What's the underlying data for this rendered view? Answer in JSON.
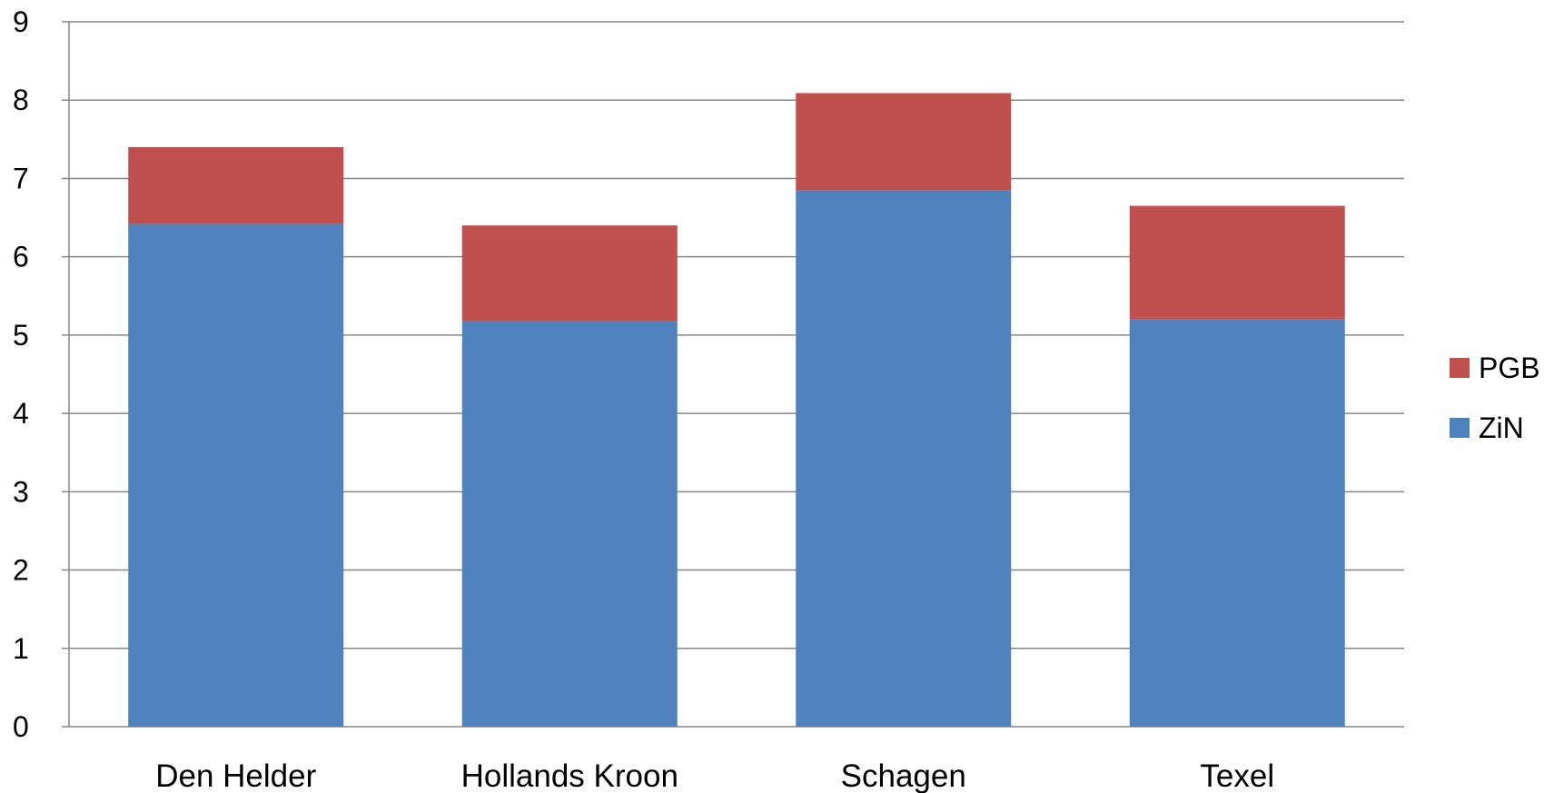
{
  "chart_data": {
    "type": "bar",
    "stacked": true,
    "categories": [
      "Den Helder",
      "Hollands Kroon",
      "Schagen",
      "Texel"
    ],
    "series": [
      {
        "name": "ZiN",
        "values": [
          6.42,
          5.18,
          6.85,
          5.2
        ],
        "color": "#4F81BD"
      },
      {
        "name": "PGB",
        "values": [
          0.98,
          1.22,
          1.24,
          1.45
        ],
        "color": "#C0504D"
      }
    ],
    "ylim": [
      0,
      9
    ],
    "yticks": [
      "0",
      "1",
      "2",
      "3",
      "4",
      "5",
      "6",
      "7",
      "8",
      "9"
    ],
    "grid": true,
    "legend": {
      "position": "right",
      "order": [
        "PGB",
        "ZiN"
      ]
    },
    "title": "",
    "xlabel": "",
    "ylabel": ""
  }
}
